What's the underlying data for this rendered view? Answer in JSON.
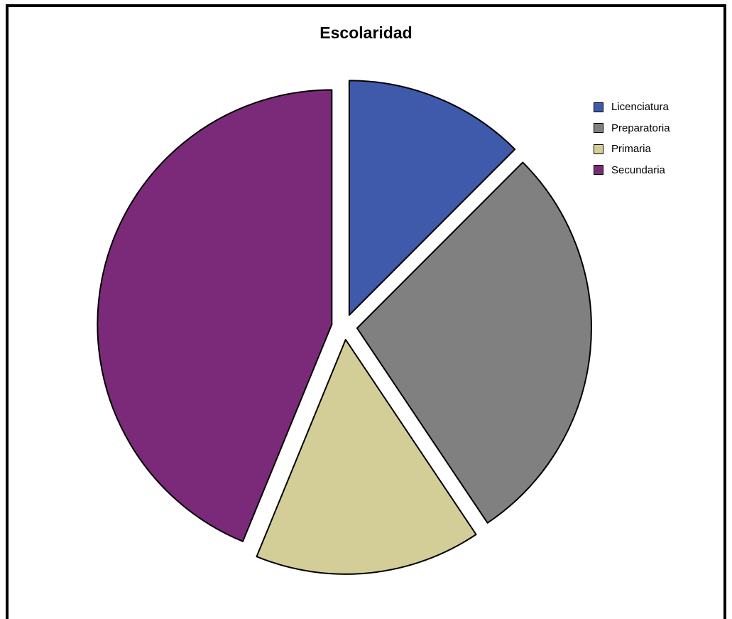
{
  "chart_data": {
    "type": "pie",
    "title": "Escolaridad",
    "slices": [
      {
        "label": "Licenciatura",
        "value": 12.5,
        "color": "#3F59AB"
      },
      {
        "label": "Preparatoria",
        "value": 28.1,
        "color": "#808080"
      },
      {
        "label": "Primaria",
        "value": 15.6,
        "color": "#D3CE97"
      },
      {
        "label": "Secundaria",
        "value": 43.8,
        "color": "#7B2A7A"
      }
    ],
    "legend": {
      "position": "top-right"
    },
    "exploded": true
  }
}
